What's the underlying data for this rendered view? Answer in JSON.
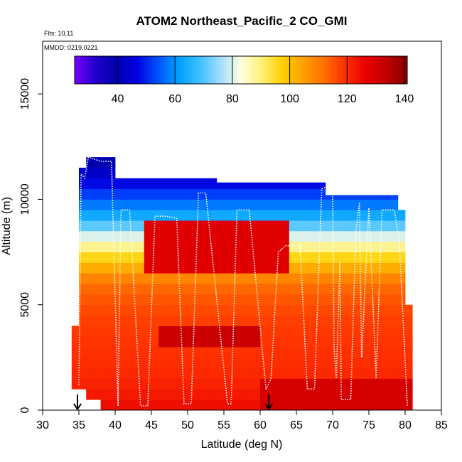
{
  "chart_data": {
    "type": "heatmap",
    "title": "ATOM2 Northeast_Pacific_2 CO_GMI",
    "annotations": [
      "Flts: 10,11",
      "MMDD: 0219,0221"
    ],
    "xlabel": "Latitude (deg N)",
    "ylabel": "Altitude (m)",
    "xlim": [
      30,
      85
    ],
    "ylim": [
      0,
      17500
    ],
    "x_ticks": [
      "30",
      "35",
      "40",
      "45",
      "50",
      "55",
      "60",
      "65",
      "70",
      "75",
      "80",
      "85"
    ],
    "y_ticks": [
      "0",
      "5000",
      "10000",
      "15000"
    ],
    "colorbar": {
      "range": [
        25,
        141
      ],
      "ticks": [
        "40",
        "60",
        "80",
        "100",
        "120",
        "140"
      ],
      "colors": [
        "#7A00FF",
        "#2200CC",
        "#0000B0",
        "#0000E0",
        "#0050FF",
        "#00A0FF",
        "#3CC0FF",
        "#A0DCFF",
        "#FFFFE0",
        "#FFF07A",
        "#FFD000",
        "#FFA000",
        "#FF7000",
        "#FF3000",
        "#E80000",
        "#C00000",
        "#8A0000"
      ]
    },
    "grid": false,
    "lat_columns": [
      34.5,
      35.5,
      36.5,
      37.5,
      38.5,
      39.5,
      40.5,
      41.5,
      42.5,
      43.5,
      44.5,
      45.5,
      46.5,
      47.5,
      48.5,
      49.5,
      50.5,
      51.5,
      52.5,
      53.5,
      54.5,
      55.5,
      56.5,
      57.5,
      58.5,
      59.5,
      60.5,
      61.5,
      62.5,
      63.5,
      64.5,
      65.5,
      66.5,
      67.5,
      68.5,
      69.5,
      70.5,
      71.5,
      72.5,
      73.5,
      74.5,
      75.5,
      76.5,
      77.5,
      78.5,
      79.5,
      80.5
    ],
    "column_tops_m": [
      4000,
      11500,
      12000,
      12000,
      12000,
      12000,
      11000,
      11000,
      11000,
      11000,
      11000,
      11000,
      11000,
      11000,
      11000,
      11000,
      11000,
      11000,
      11000,
      11000,
      10800,
      10800,
      10800,
      10800,
      10800,
      10800,
      10800,
      10800,
      10800,
      10800,
      10800,
      10800,
      10800,
      10800,
      10800,
      10200,
      10200,
      10200,
      10200,
      10200,
      10200,
      10200,
      10200,
      10200,
      10200,
      9500,
      5000
    ],
    "column_bottoms_m": [
      1000,
      1000,
      500,
      500,
      0,
      0,
      0,
      0,
      0,
      0,
      0,
      0,
      0,
      0,
      0,
      0,
      0,
      0,
      0,
      0,
      0,
      0,
      0,
      0,
      0,
      0,
      0,
      0,
      0,
      0,
      0,
      0,
      0,
      0,
      0,
      0,
      0,
      0,
      0,
      0,
      0,
      0,
      0,
      0,
      0,
      0,
      0
    ],
    "altitude_profile_ppb": [
      {
        "altitude_m": 12000,
        "value": 38
      },
      {
        "altitude_m": 11000,
        "value": 45
      },
      {
        "altitude_m": 10000,
        "value": 55
      },
      {
        "altitude_m": 9000,
        "value": 66
      },
      {
        "altitude_m": 8000,
        "value": 85
      },
      {
        "altitude_m": 7000,
        "value": 100
      },
      {
        "altitude_m": 6000,
        "value": 112
      },
      {
        "altitude_m": 5000,
        "value": 116
      },
      {
        "altitude_m": 4000,
        "value": 118
      },
      {
        "altitude_m": 3000,
        "value": 119
      },
      {
        "altitude_m": 2000,
        "value": 120
      },
      {
        "altitude_m": 1000,
        "value": 122
      },
      {
        "altitude_m": 0,
        "value": 125
      }
    ],
    "enhanced_regions_ppb": [
      {
        "lat_range": [
          44,
          64
        ],
        "alt_range_m": [
          6500,
          9000
        ],
        "value": 128
      },
      {
        "lat_range": [
          46,
          60
        ],
        "alt_range_m": [
          3000,
          4200
        ],
        "value": 132
      },
      {
        "lat_range": [
          60,
          81
        ],
        "alt_range_m": [
          0,
          1500
        ],
        "value": 130
      }
    ],
    "flight_track": [
      [
        35.0,
        1200
      ],
      [
        35.3,
        11200
      ],
      [
        35.8,
        11000
      ],
      [
        36.3,
        12000
      ],
      [
        38.0,
        11800
      ],
      [
        39.5,
        11800
      ],
      [
        40.4,
        200
      ],
      [
        40.8,
        9500
      ],
      [
        42.0,
        9500
      ],
      [
        43.5,
        200
      ],
      [
        44.5,
        200
      ],
      [
        45.5,
        9200
      ],
      [
        47.0,
        9200
      ],
      [
        48.5,
        9100
      ],
      [
        49.5,
        300
      ],
      [
        50.5,
        300
      ],
      [
        51.5,
        10300
      ],
      [
        52.5,
        10300
      ],
      [
        55.5,
        300
      ],
      [
        56.0,
        300
      ],
      [
        56.8,
        9500
      ],
      [
        58.5,
        9500
      ],
      [
        60.8,
        1000
      ],
      [
        61.5,
        1500
      ],
      [
        62.5,
        7500
      ],
      [
        63.5,
        7800
      ],
      [
        65.0,
        7800
      ],
      [
        65.5,
        7800
      ],
      [
        66.5,
        1000
      ],
      [
        67.5,
        1000
      ],
      [
        68.5,
        10500
      ],
      [
        70.0,
        10700
      ],
      [
        70.2,
        3000
      ],
      [
        70.5,
        1500
      ],
      [
        71.0,
        7000
      ],
      [
        71.2,
        500
      ],
      [
        72.5,
        500
      ],
      [
        73.2,
        8500
      ],
      [
        73.7,
        9800
      ],
      [
        74.0,
        2500
      ],
      [
        75.0,
        9600
      ],
      [
        76.0,
        1500
      ],
      [
        76.8,
        9500
      ],
      [
        78.5,
        9500
      ],
      [
        79.2,
        8000
      ],
      [
        80.3,
        200
      ]
    ],
    "markers": [
      {
        "latitude": 34.8,
        "type": "down-arrow"
      },
      {
        "latitude": 61.2,
        "type": "down-arrow"
      }
    ]
  }
}
